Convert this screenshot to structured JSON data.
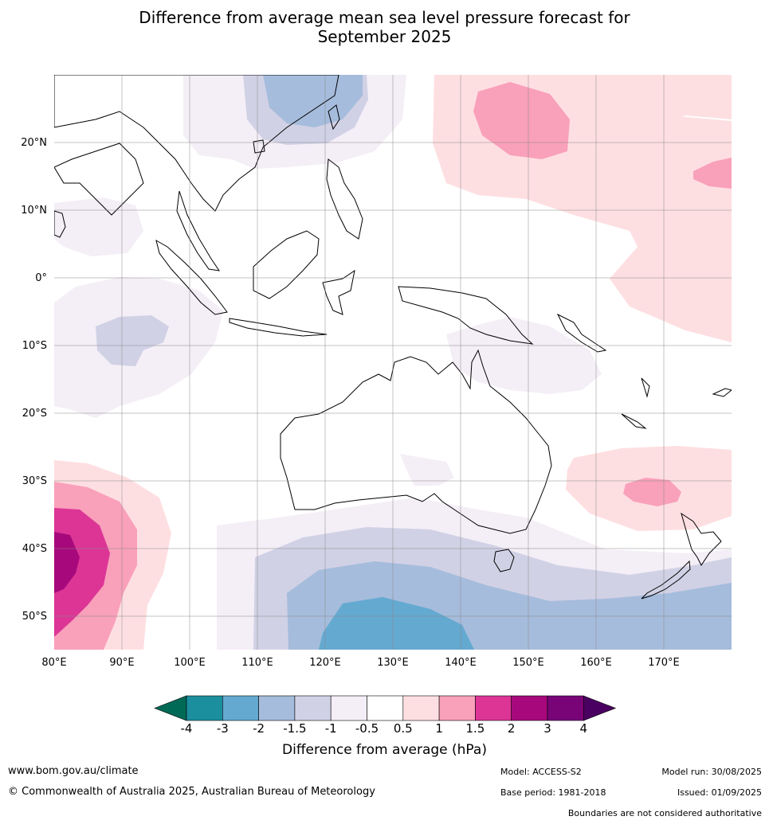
{
  "title_line1": "Difference from average mean sea level pressure forecast for",
  "title_line2": "September 2025",
  "lat_labels": [
    "20°N",
    "10°N",
    "0°",
    "10°S",
    "20°S",
    "30°S",
    "40°S",
    "50°S"
  ],
  "lon_labels": [
    "80°E",
    "90°E",
    "100°E",
    "110°E",
    "120°E",
    "130°E",
    "140°E",
    "150°E",
    "160°E",
    "170°E"
  ],
  "colorbar": {
    "ticks": [
      "-4",
      "-3",
      "-2",
      "-1.5",
      "-1",
      "-0.5",
      "0.5",
      "1",
      "1.5",
      "2",
      "3",
      "4"
    ],
    "colors": [
      "#1b8f9e",
      "#64a9d0",
      "#a6bcdc",
      "#d1d1e6",
      "#f4eef6",
      "#ffffff",
      "#fedfe1",
      "#f9a0ba",
      "#dc3596",
      "#a7097c",
      "#780478"
    ],
    "extend_low_color": "#006a57",
    "extend_high_color": "#4a0060",
    "label": "Difference from average (hPa)"
  },
  "footer": {
    "website": "www.bom.gov.au/climate",
    "copyright": "© Commonwealth of Australia 2025, Australian Bureau of Meteorology",
    "model": "Model: ACCESS-S2",
    "model_run": "Model run: 30/08/2025",
    "base_period": "Base period: 1981-2018",
    "issued": "Issued: 01/09/2025",
    "disclaimer": "Boundaries are not considered authoritative"
  }
}
